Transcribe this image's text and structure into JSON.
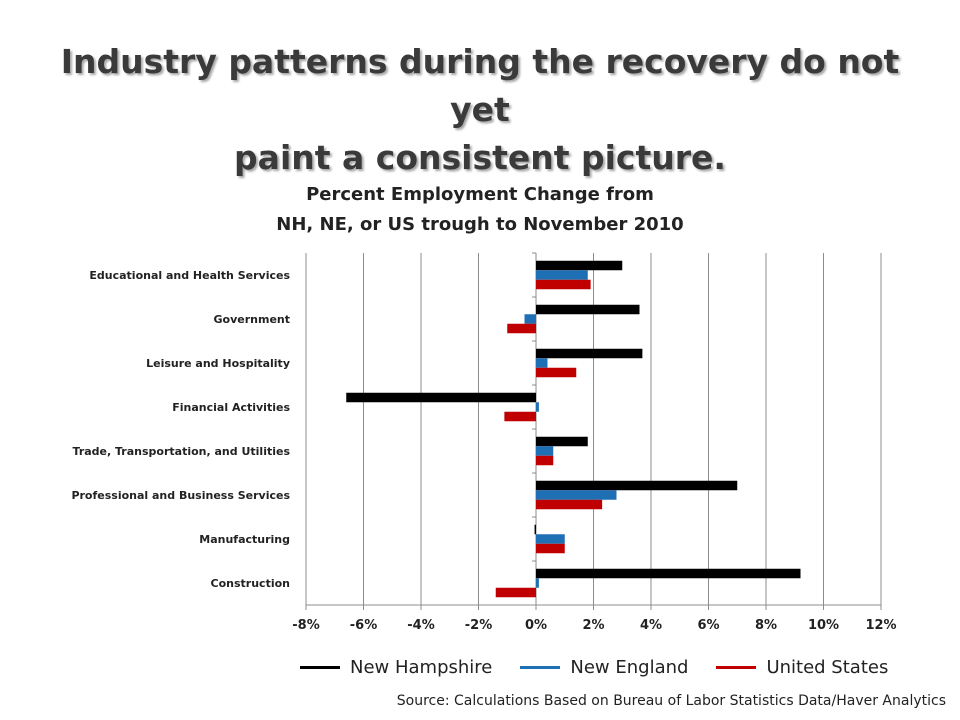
{
  "slide": {
    "title_line1": "Industry patterns during the recovery do not yet",
    "title_line2": "paint a consistent picture."
  },
  "chart_data": {
    "type": "bar",
    "orientation": "horizontal",
    "title_line1": "Percent  Employment Change from",
    "title_line2": "NH, NE, or US trough to November 2010",
    "categories": [
      "Educational and Health Services",
      "Government",
      "Leisure and Hospitality",
      "Financial Activities",
      "Trade, Transportation, and Utilities",
      "Professional and Business Services",
      "Manufacturing",
      "Construction"
    ],
    "series": [
      {
        "name": "New Hampshire",
        "color": "#000000",
        "values": [
          3.0,
          3.6,
          3.7,
          -6.6,
          1.8,
          7.0,
          -0.05,
          9.2
        ]
      },
      {
        "name": "New England",
        "color": "#1f6fb5",
        "values": [
          1.8,
          -0.4,
          0.4,
          0.1,
          0.6,
          2.8,
          1.0,
          0.1
        ]
      },
      {
        "name": "United States",
        "color": "#c00000",
        "values": [
          1.9,
          -1.0,
          1.4,
          -1.1,
          0.6,
          2.3,
          1.0,
          -1.4
        ]
      }
    ],
    "xlim": [
      -8,
      12
    ],
    "xticks": [
      -8,
      -6,
      -4,
      -2,
      0,
      2,
      4,
      6,
      8,
      10,
      12
    ],
    "xtick_labels": [
      "-8%",
      "-6%",
      "-4%",
      "-2%",
      "0%",
      "2%",
      "4%",
      "6%",
      "8%",
      "10%",
      "12%"
    ],
    "grid": "vertical",
    "legend_position": "bottom"
  },
  "source": "Source: Calculations Based on Bureau of Labor Statistics Data/Haver Analytics"
}
